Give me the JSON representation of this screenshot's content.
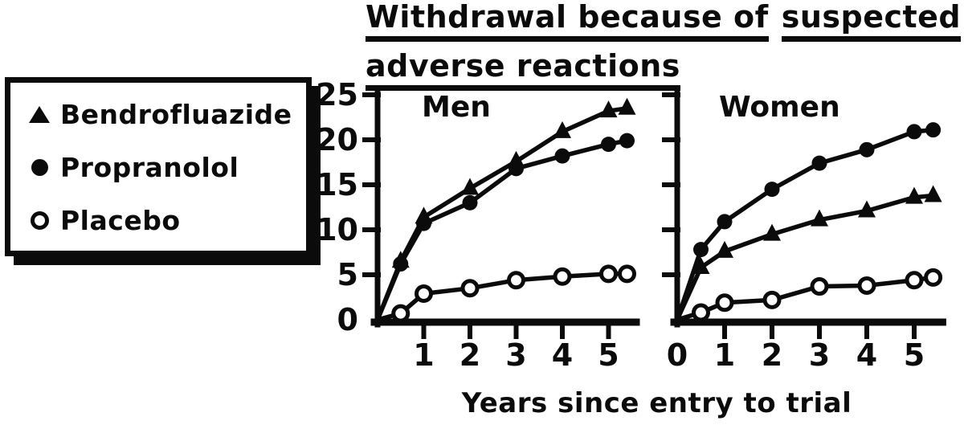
{
  "colors": {
    "ink": "#0b0b0b",
    "paper": "#ffffff"
  },
  "figure": {
    "title": {
      "line1_part1": "Withdrawal because of",
      "line1_part2": "suspected",
      "line2": "adverse reactions"
    }
  },
  "legend": {
    "items": [
      {
        "marker": "triangle-filled",
        "label": "Bendrofluazide"
      },
      {
        "marker": "circle-filled",
        "label": "Propranolol"
      },
      {
        "marker": "circle-open",
        "label": "Placebo"
      }
    ]
  },
  "chart_data": {
    "type": "line",
    "title": "Withdrawal because of suspected adverse reactions",
    "xlabel": "Years since entry to trial",
    "ylabel": "",
    "xlim": [
      0,
      5.6
    ],
    "ylim": [
      0,
      25
    ],
    "yticks": [
      0,
      5,
      10,
      15,
      20,
      25
    ],
    "grid": false,
    "legend_position": "outside-left",
    "x": [
      0,
      0.5,
      1,
      2,
      3,
      4,
      5,
      5.4
    ],
    "panels": [
      {
        "label": "Men",
        "ytick_labels": [
          "0",
          "5",
          "10",
          "15",
          "20",
          "25"
        ],
        "xticks": [
          1,
          2,
          3,
          4,
          5
        ],
        "xtick_labels": [
          "1",
          "2",
          "3",
          "4",
          "5"
        ],
        "series": [
          {
            "name": "Bendrofluazide",
            "marker": "triangle-filled",
            "values": [
              0,
              6.5,
              11.4,
              14.6,
              17.6,
              20.9,
              23.2,
              23.5
            ]
          },
          {
            "name": "Propranolol",
            "marker": "circle-filled",
            "values": [
              0,
              6.2,
              10.7,
              13.0,
              16.8,
              18.2,
              19.5,
              19.9
            ]
          },
          {
            "name": "Placebo",
            "marker": "circle-open",
            "values": [
              0,
              0.7,
              2.9,
              3.5,
              4.4,
              4.8,
              5.1,
              5.1
            ]
          }
        ]
      },
      {
        "label": "Women",
        "ytick_labels": [],
        "xticks": [
          0,
          1,
          2,
          3,
          4,
          5
        ],
        "xtick_labels": [
          "0",
          "1",
          "2",
          "3",
          "4",
          "5"
        ],
        "series": [
          {
            "name": "Bendrofluazide",
            "marker": "triangle-filled",
            "values": [
              0,
              5.8,
              7.6,
              9.5,
              11.1,
              12.1,
              13.6,
              13.8
            ]
          },
          {
            "name": "Propranolol",
            "marker": "circle-filled",
            "values": [
              0,
              7.8,
              10.9,
              14.5,
              17.4,
              18.9,
              20.9,
              21.1
            ]
          },
          {
            "name": "Placebo",
            "marker": "circle-open",
            "values": [
              0,
              0.8,
              1.9,
              2.2,
              3.7,
              3.8,
              4.4,
              4.7
            ]
          }
        ]
      }
    ]
  }
}
